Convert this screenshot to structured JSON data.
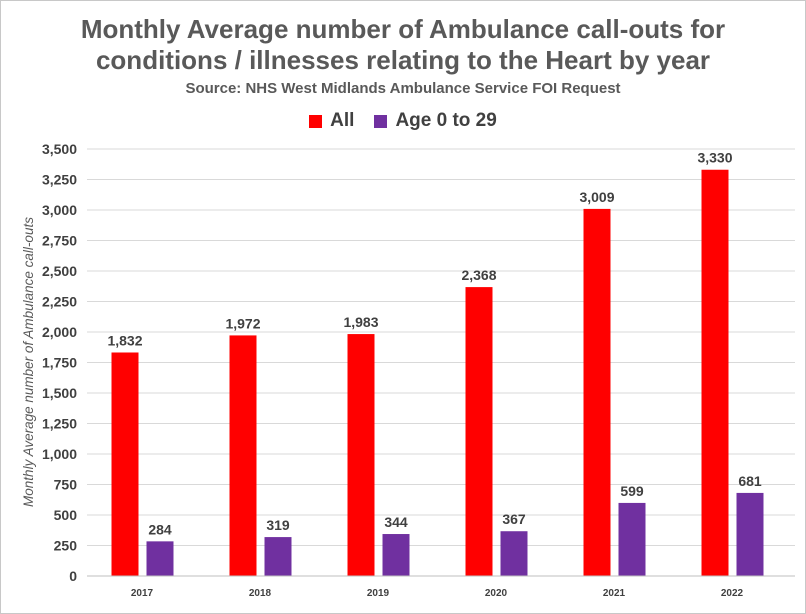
{
  "chart_data": {
    "type": "bar",
    "title": "Monthly Average number of Ambulance call-outs for conditions / illnesses relating to the Heart by year",
    "title_lines": [
      "Monthly Average number of Ambulance call-outs for",
      "conditions / illnesses relating to the Heart by year"
    ],
    "subtitle": "Source: NHS West Midlands Ambulance Service FOI Request",
    "xlabel": "",
    "ylabel": "Monthly Average number of Ambulance call-outs",
    "categories": [
      "2017",
      "2018",
      "2019",
      "2020",
      "2021",
      "2022"
    ],
    "series": [
      {
        "name": "All",
        "color": "#ff0000",
        "values": [
          1832,
          1972,
          1983,
          2368,
          3009,
          3330
        ],
        "labels": [
          "1,832",
          "1,972",
          "1,983",
          "2,368",
          "3,009",
          "3,330"
        ]
      },
      {
        "name": "Age 0 to 29",
        "color": "#7030a0",
        "values": [
          284,
          319,
          344,
          367,
          599,
          681
        ],
        "labels": [
          "284",
          "319",
          "344",
          "367",
          "599",
          "681"
        ]
      }
    ],
    "ylim": [
      0,
      3500
    ],
    "yticks": [
      0,
      250,
      500,
      750,
      1000,
      1250,
      1500,
      1750,
      2000,
      2250,
      2500,
      2750,
      3000,
      3250,
      3500
    ],
    "ytick_labels": [
      "0",
      "250",
      "500",
      "750",
      "1,000",
      "1,250",
      "1,500",
      "1,750",
      "2,000",
      "2,250",
      "2,500",
      "2,750",
      "3,000",
      "3,250",
      "3,500"
    ],
    "grid": true,
    "legend_position": "top"
  }
}
